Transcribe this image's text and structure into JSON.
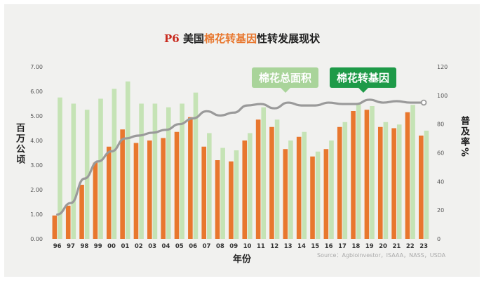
{
  "title": {
    "prefix": "P6",
    "part1": " 美国",
    "part2": "棉花转基因",
    "part3": "性转发展现状"
  },
  "callouts": {
    "area": "棉花总面积",
    "gm": "棉花转基因"
  },
  "source": "Source：Agbioinvestor，ISAAA，NASS，USDA",
  "colors": {
    "area_bar": "#c5e3b5",
    "gm_bar": "#e8772e",
    "line": "#9a9a9a",
    "title_red": "#c8291d",
    "title_orange": "#e8772e",
    "callout_area": "#a9d49a",
    "callout_gm": "#1e9a48"
  },
  "chart_data": {
    "type": "bar",
    "xlabel": "年份",
    "ylabel": "百万公顷",
    "ylabel_right": "普及率%",
    "ylim": [
      0,
      7
    ],
    "ylim_right": [
      0,
      120
    ],
    "yticks": [
      "0.00",
      "1.00",
      "2.00",
      "3.00",
      "4.00",
      "5.00",
      "6.00",
      "7.00"
    ],
    "yticks_right": [
      "0",
      "20",
      "40",
      "60",
      "80",
      "100",
      "120"
    ],
    "grid": false,
    "categories": [
      "96",
      "97",
      "98",
      "99",
      "00",
      "01",
      "02",
      "03",
      "04",
      "05",
      "06",
      "07",
      "08",
      "09",
      "10",
      "11",
      "12",
      "13",
      "14",
      "15",
      "16",
      "17",
      "18",
      "19",
      "20",
      "21",
      "22",
      "23"
    ],
    "series": [
      {
        "kind": "bar",
        "axis": "left",
        "values": [
          5.75,
          5.5,
          5.25,
          5.7,
          6.1,
          6.4,
          5.5,
          5.5,
          5.35,
          5.5,
          5.95,
          4.3,
          3.7,
          3.6,
          4.3,
          5.35,
          4.85,
          4.0,
          4.35,
          3.55,
          4.0,
          4.75,
          5.5,
          5.4,
          4.75,
          4.65,
          5.45,
          4.4
        ]
      },
      {
        "kind": "bar",
        "axis": "left",
        "values": [
          0.95,
          1.35,
          2.2,
          3.1,
          3.75,
          4.45,
          3.9,
          4.0,
          4.1,
          4.35,
          4.95,
          3.75,
          3.2,
          3.15,
          4.0,
          4.85,
          4.55,
          3.65,
          4.15,
          3.35,
          3.65,
          4.55,
          5.2,
          5.25,
          4.55,
          4.5,
          5.15,
          4.2
        ]
      },
      {
        "kind": "line",
        "axis": "right",
        "values": [
          17,
          25,
          42,
          54,
          61,
          70,
          72,
          74,
          76,
          80,
          84,
          89,
          86,
          88,
          93,
          94,
          91,
          95,
          93,
          93,
          95,
          94,
          94,
          97,
          95,
          96,
          95,
          95
        ]
      }
    ]
  }
}
